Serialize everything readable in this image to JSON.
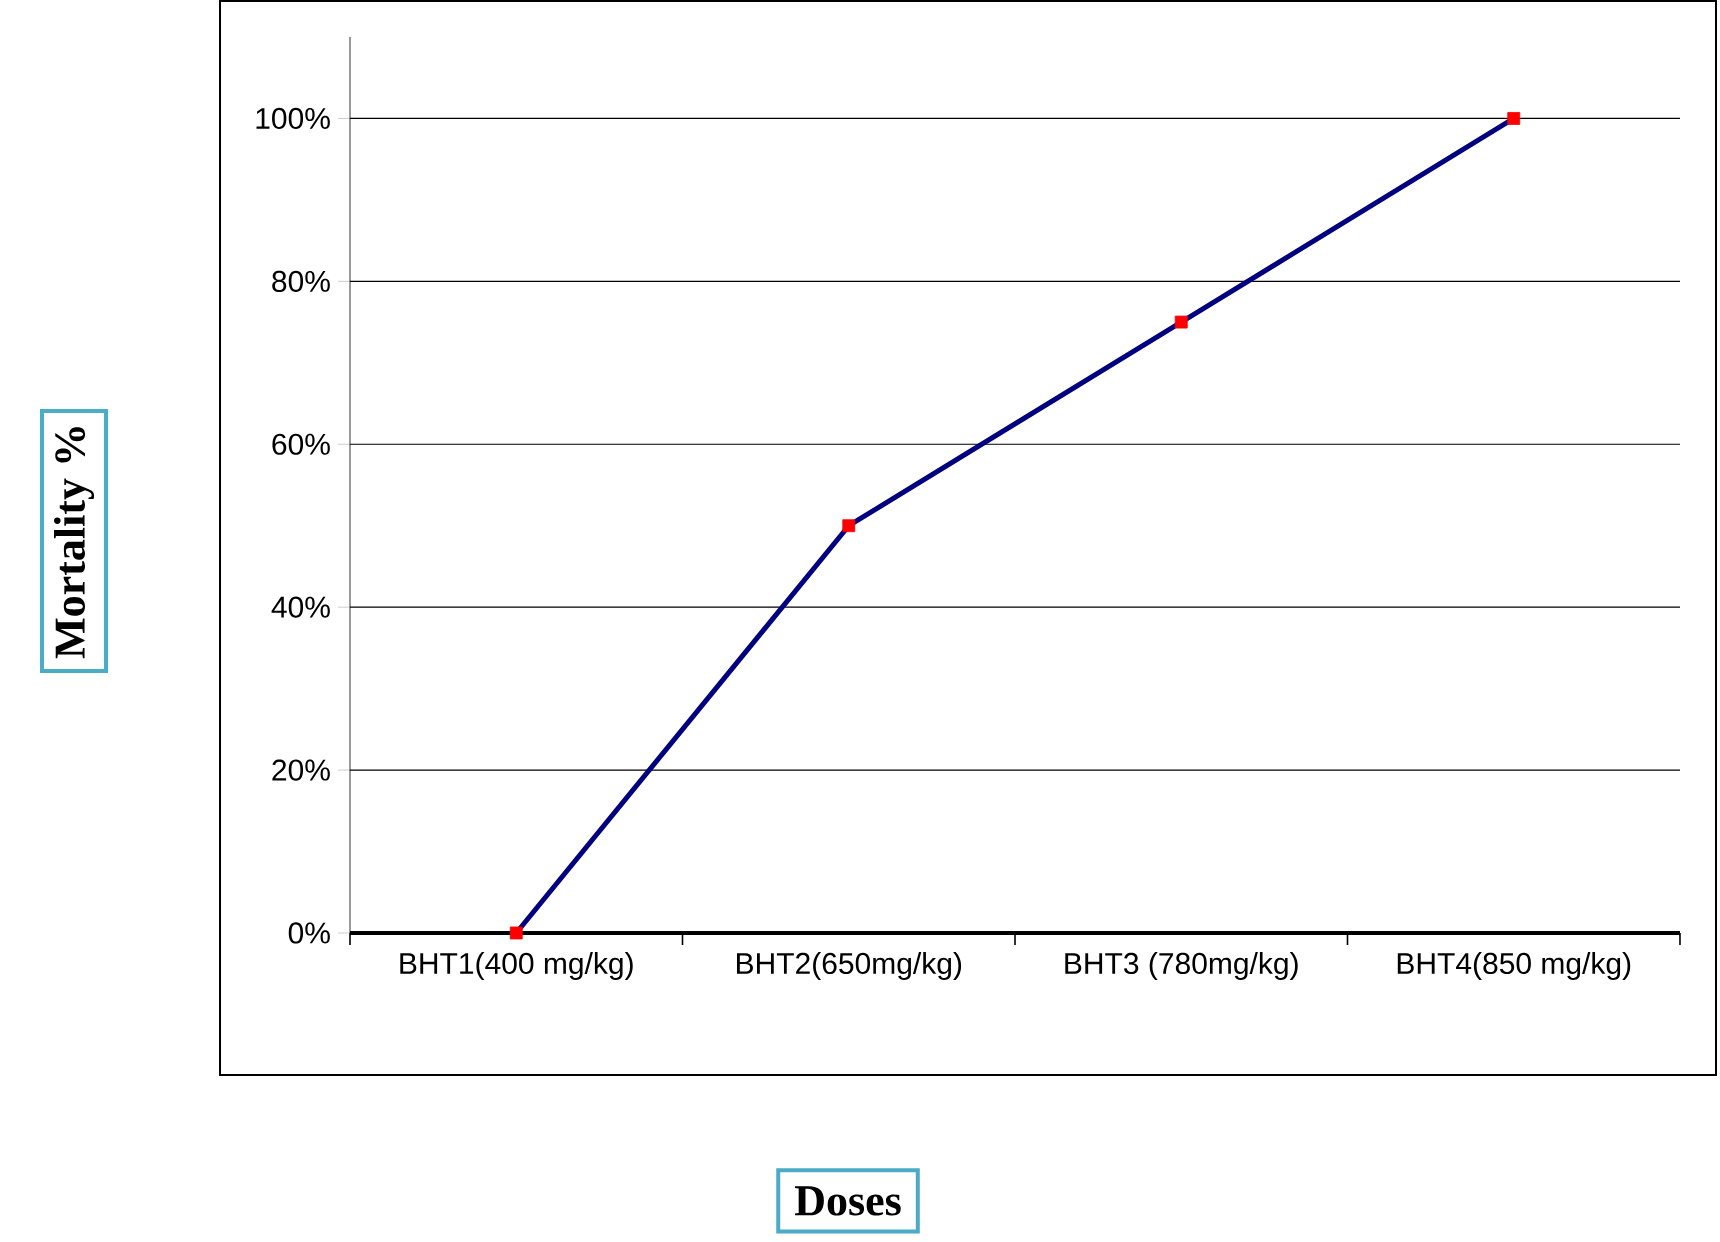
{
  "chart_data": {
    "type": "line",
    "xlabel": "Doses",
    "ylabel": "Mortality %",
    "categories": [
      "BHT1(400 mg/kg)",
      "BHT2(650mg/kg)",
      "BHT3 (780mg/kg)",
      "BHT4(850 mg/kg)"
    ],
    "series": [
      {
        "color": "#000080",
        "colors": [
          "#ff0000",
          "#ff0000",
          "#ff0000",
          "#ff0000"
        ],
        "values": [
          0,
          50,
          75,
          100
        ]
      }
    ],
    "ylim": [
      0,
      110
    ],
    "yticks": [
      {
        "value": 0,
        "label": "0%"
      },
      {
        "value": 20,
        "label": "20%"
      },
      {
        "value": 40,
        "label": "40%"
      },
      {
        "value": 60,
        "label": "60%"
      },
      {
        "value": 80,
        "label": "80%"
      },
      {
        "value": 100,
        "label": "100%"
      }
    ],
    "grid": "y",
    "marker": "square",
    "line_style": "solid"
  }
}
